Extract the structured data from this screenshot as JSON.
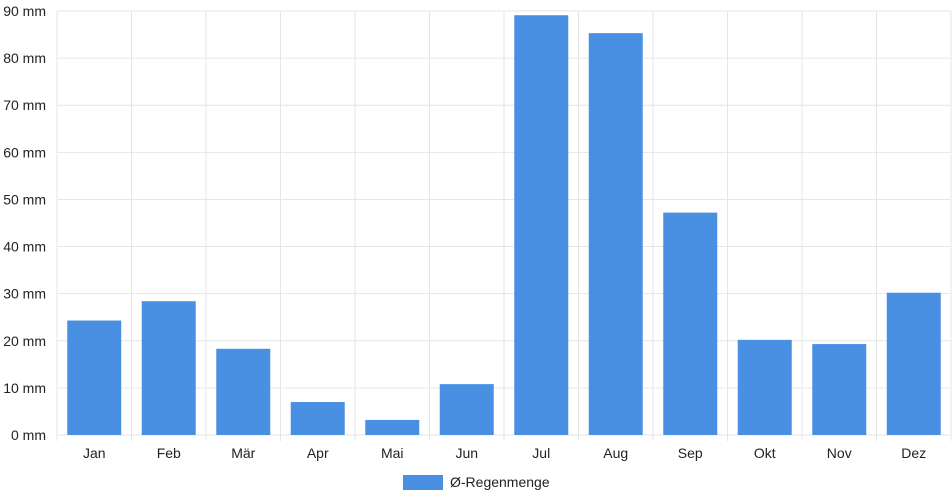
{
  "chart_data": {
    "type": "bar",
    "categories": [
      "Jan",
      "Feb",
      "Mär",
      "Apr",
      "Mai",
      "Jun",
      "Jul",
      "Aug",
      "Sep",
      "Okt",
      "Nov",
      "Dez"
    ],
    "series": [
      {
        "name": "Ø-Regenmenge",
        "color": "#4a90e2",
        "values": [
          24.3,
          28.4,
          18.3,
          7.0,
          3.2,
          10.8,
          89.1,
          85.3,
          47.2,
          20.2,
          19.3,
          30.2
        ]
      }
    ],
    "yticks": [
      "0 mm",
      "10 mm",
      "20 mm",
      "30 mm",
      "40 mm",
      "50 mm",
      "60 mm",
      "70 mm",
      "80 mm",
      "90 mm"
    ],
    "ylim": [
      0,
      90
    ],
    "grid": true,
    "legend": "bottom-center",
    "gridColor": "#e6e6e6"
  }
}
